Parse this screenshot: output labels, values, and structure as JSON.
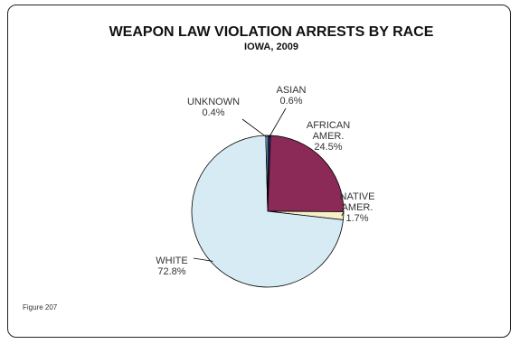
{
  "chart_data": {
    "type": "pie",
    "title": "WEAPON LAW VIOLATION ARRESTS BY RACE",
    "subtitle": "IOWA, 2009",
    "slices": [
      {
        "key": "asian",
        "label_lines": [
          "ASIAN",
          "0.6%"
        ],
        "value": 0.6,
        "color": "#1f2f7a"
      },
      {
        "key": "african-amer",
        "label_lines": [
          "AFRICAN",
          "AMER.",
          "24.5%"
        ],
        "value": 24.5,
        "color": "#8b2a57"
      },
      {
        "key": "native-amer",
        "label_lines": [
          "NATIVE",
          "AMER.",
          "1.7%"
        ],
        "value": 1.7,
        "color": "#f5f0c8"
      },
      {
        "key": "white",
        "label_lines": [
          "WHITE",
          "72.8%"
        ],
        "value": 72.8,
        "color": "#d6ebf3"
      },
      {
        "key": "unknown",
        "label_lines": [
          "UNKNOWN",
          "0.4%"
        ],
        "value": 0.4,
        "color": "#a8d8ef"
      }
    ],
    "legend": "none"
  },
  "figure_label": "Figure 207"
}
